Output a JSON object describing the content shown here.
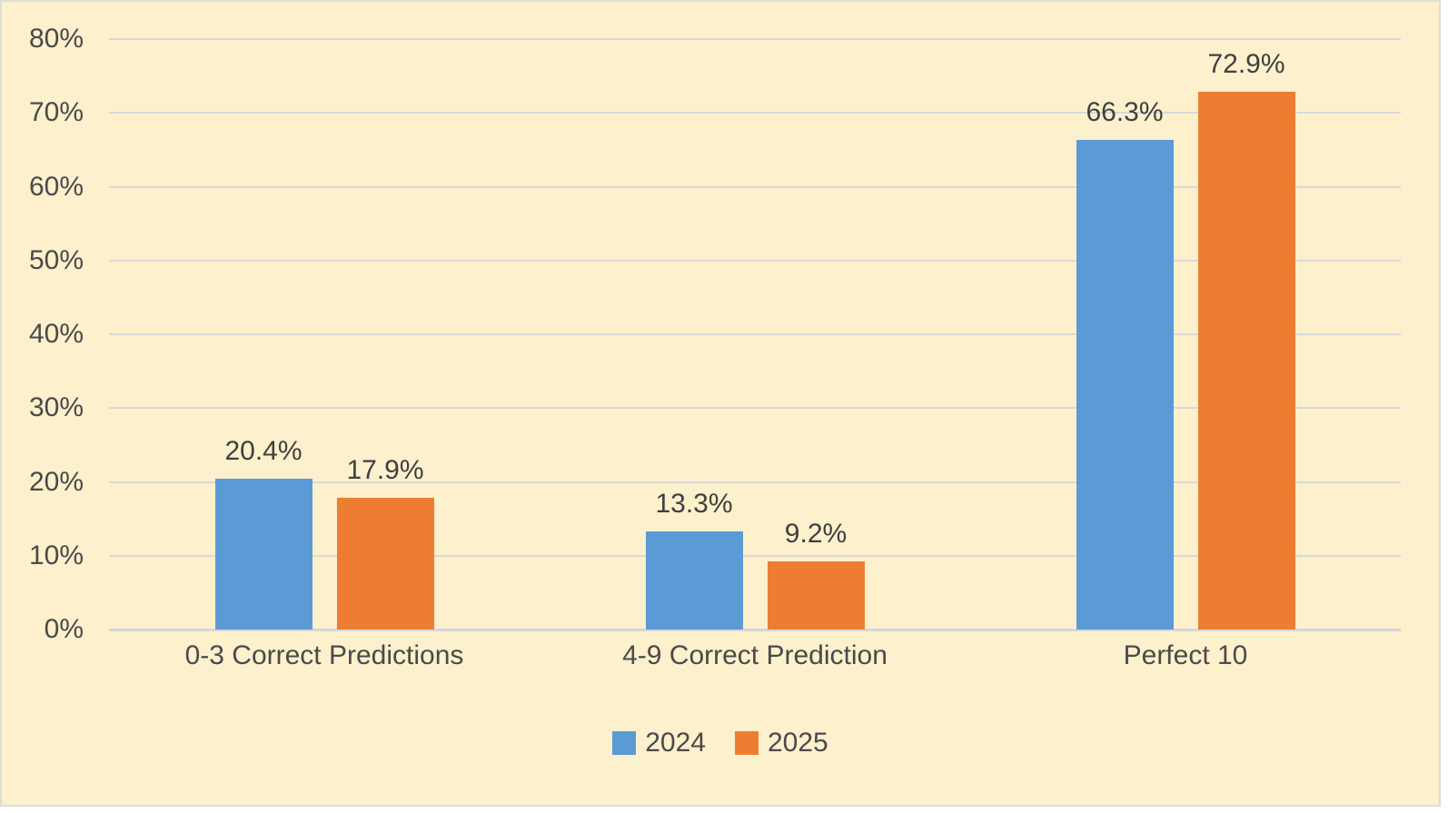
{
  "chart_data": {
    "type": "bar",
    "categories": [
      "0-3 Correct Predictions",
      "4-9 Correct Prediction",
      "Perfect 10"
    ],
    "series": [
      {
        "name": "2024",
        "color": "#5B9BD5",
        "values": [
          20.4,
          13.3,
          66.3
        ],
        "labels": [
          "20.4%",
          "13.3%",
          "66.3%"
        ]
      },
      {
        "name": "2025",
        "color": "#ED7D31",
        "values": [
          17.9,
          9.2,
          72.9
        ],
        "labels": [
          "17.9%",
          "9.2%",
          "72.9%"
        ]
      }
    ],
    "ylim": [
      0,
      80
    ],
    "yticks": [
      {
        "value": 0,
        "label": "0%"
      },
      {
        "value": 10,
        "label": "10%"
      },
      {
        "value": 20,
        "label": "20%"
      },
      {
        "value": 30,
        "label": "30%"
      },
      {
        "value": 40,
        "label": "40%"
      },
      {
        "value": 50,
        "label": "50%"
      },
      {
        "value": 60,
        "label": "60%"
      },
      {
        "value": 70,
        "label": "70%"
      },
      {
        "value": 80,
        "label": "80%"
      }
    ],
    "grid": true,
    "legend_position": "bottom"
  },
  "style": {
    "plot_background": "#FDF0CC",
    "frame_border_color": "#DCDCDC",
    "gridline_color": "#D9D9D9",
    "axis_line_color": "#D6D6D6",
    "text_color": "#4A4A4A",
    "data_label_color": "#404040"
  }
}
